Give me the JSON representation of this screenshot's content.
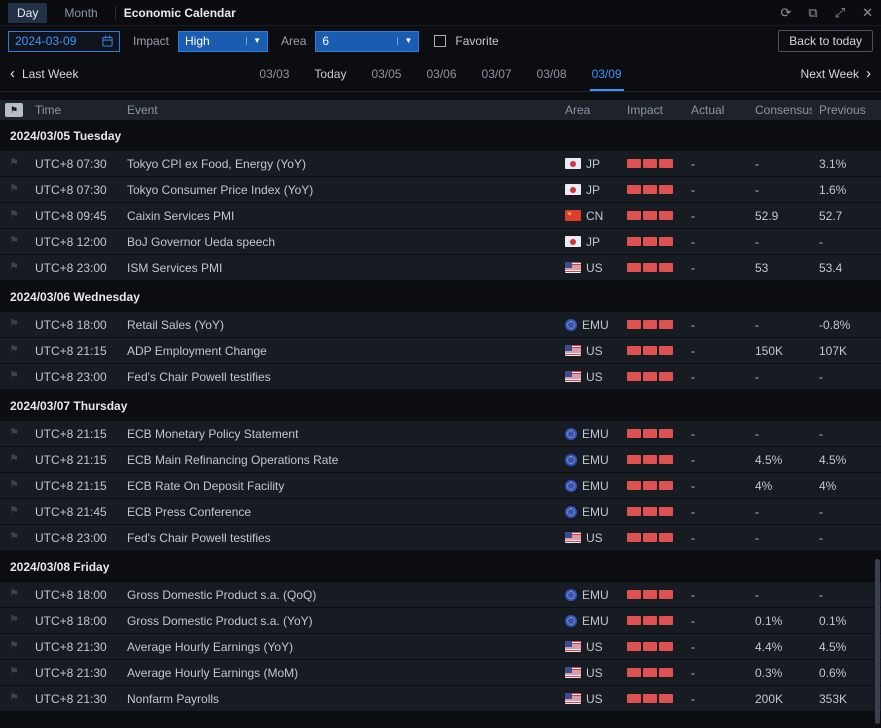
{
  "titlebar": {
    "tabs": [
      {
        "label": "Day"
      },
      {
        "label": "Month"
      }
    ],
    "title": "Economic Calendar"
  },
  "icons": {
    "refresh": "⟳",
    "popout": "⧉",
    "fullscreen": "⤢",
    "close": "✕",
    "prev": "‹",
    "next": "›",
    "caret": "▼",
    "bookmark": "⚑"
  },
  "filters": {
    "date_value": "2024-03-09",
    "impact_label": "Impact",
    "impact_value": "High",
    "area_label": "Area",
    "area_value": "6",
    "favorite_label": "Favorite",
    "back_to_today": "Back to today"
  },
  "week_nav": {
    "prev_label": "Last Week",
    "next_label": "Next Week",
    "days": [
      {
        "label": "03/03",
        "active": false
      },
      {
        "label": "Today",
        "active": false
      },
      {
        "label": "03/05",
        "active": false
      },
      {
        "label": "03/06",
        "active": false
      },
      {
        "label": "03/07",
        "active": false
      },
      {
        "label": "03/08",
        "active": false
      },
      {
        "label": "03/09",
        "active": true
      }
    ]
  },
  "table": {
    "headers": [
      "Time",
      "Event",
      "Area",
      "Impact",
      "Actual",
      "Consensus",
      "Previous"
    ],
    "sections": [
      {
        "date": "2024/03/05 Tuesday",
        "rows": [
          {
            "time": "UTC+8 07:30",
            "event": "Tokyo CPI ex Food, Energy (YoY)",
            "area": "JP",
            "flag": "jp",
            "impact": 3,
            "actual": "-",
            "consensus": "-",
            "previous": "3.1%"
          },
          {
            "time": "UTC+8 07:30",
            "event": "Tokyo Consumer Price Index (YoY)",
            "area": "JP",
            "flag": "jp",
            "impact": 3,
            "actual": "-",
            "consensus": "-",
            "previous": "1.6%"
          },
          {
            "time": "UTC+8 09:45",
            "event": "Caixin Services PMI",
            "area": "CN",
            "flag": "cn",
            "impact": 3,
            "actual": "-",
            "consensus": "52.9",
            "previous": "52.7"
          },
          {
            "time": "UTC+8 12:00",
            "event": "BoJ Governor Ueda speech",
            "area": "JP",
            "flag": "jp",
            "impact": 3,
            "actual": "-",
            "consensus": "-",
            "previous": "-"
          },
          {
            "time": "UTC+8 23:00",
            "event": "ISM Services PMI",
            "area": "US",
            "flag": "us",
            "impact": 3,
            "actual": "-",
            "consensus": "53",
            "previous": "53.4"
          }
        ]
      },
      {
        "date": "2024/03/06 Wednesday",
        "rows": [
          {
            "time": "UTC+8 18:00",
            "event": "Retail Sales (YoY)",
            "area": "EMU",
            "flag": "emu",
            "impact": 3,
            "actual": "-",
            "consensus": "-",
            "previous": "-0.8%"
          },
          {
            "time": "UTC+8 21:15",
            "event": "ADP Employment Change",
            "area": "US",
            "flag": "us",
            "impact": 3,
            "actual": "-",
            "consensus": "150K",
            "previous": "107K"
          },
          {
            "time": "UTC+8 23:00",
            "event": "Fed's Chair Powell testifies",
            "area": "US",
            "flag": "us",
            "impact": 3,
            "actual": "-",
            "consensus": "-",
            "previous": "-"
          }
        ]
      },
      {
        "date": "2024/03/07 Thursday",
        "rows": [
          {
            "time": "UTC+8 21:15",
            "event": "ECB Monetary Policy Statement",
            "area": "EMU",
            "flag": "emu",
            "impact": 3,
            "actual": "-",
            "consensus": "-",
            "previous": "-"
          },
          {
            "time": "UTC+8 21:15",
            "event": "ECB Main Refinancing Operations Rate",
            "area": "EMU",
            "flag": "emu",
            "impact": 3,
            "actual": "-",
            "consensus": "4.5%",
            "previous": "4.5%"
          },
          {
            "time": "UTC+8 21:15",
            "event": "ECB Rate On Deposit Facility",
            "area": "EMU",
            "flag": "emu",
            "impact": 3,
            "actual": "-",
            "consensus": "4%",
            "previous": "4%"
          },
          {
            "time": "UTC+8 21:45",
            "event": "ECB Press Conference",
            "area": "EMU",
            "flag": "emu",
            "impact": 3,
            "actual": "-",
            "consensus": "-",
            "previous": "-"
          },
          {
            "time": "UTC+8 23:00",
            "event": "Fed's Chair Powell testifies",
            "area": "US",
            "flag": "us",
            "impact": 3,
            "actual": "-",
            "consensus": "-",
            "previous": "-"
          }
        ]
      },
      {
        "date": "2024/03/08 Friday",
        "rows": [
          {
            "time": "UTC+8 18:00",
            "event": "Gross Domestic Product s.a. (QoQ)",
            "area": "EMU",
            "flag": "emu",
            "impact": 3,
            "actual": "-",
            "consensus": "-",
            "previous": "-"
          },
          {
            "time": "UTC+8 18:00",
            "event": "Gross Domestic Product s.a. (YoY)",
            "area": "EMU",
            "flag": "emu",
            "impact": 3,
            "actual": "-",
            "consensus": "0.1%",
            "previous": "0.1%"
          },
          {
            "time": "UTC+8 21:30",
            "event": "Average Hourly Earnings (YoY)",
            "area": "US",
            "flag": "us",
            "impact": 3,
            "actual": "-",
            "consensus": "4.4%",
            "previous": "4.5%"
          },
          {
            "time": "UTC+8 21:30",
            "event": "Average Hourly Earnings (MoM)",
            "area": "US",
            "flag": "us",
            "impact": 3,
            "actual": "-",
            "consensus": "0.3%",
            "previous": "0.6%"
          },
          {
            "time": "UTC+8 21:30",
            "event": "Nonfarm Payrolls",
            "area": "US",
            "flag": "us",
            "impact": 3,
            "actual": "-",
            "consensus": "200K",
            "previous": "353K"
          }
        ]
      }
    ]
  }
}
